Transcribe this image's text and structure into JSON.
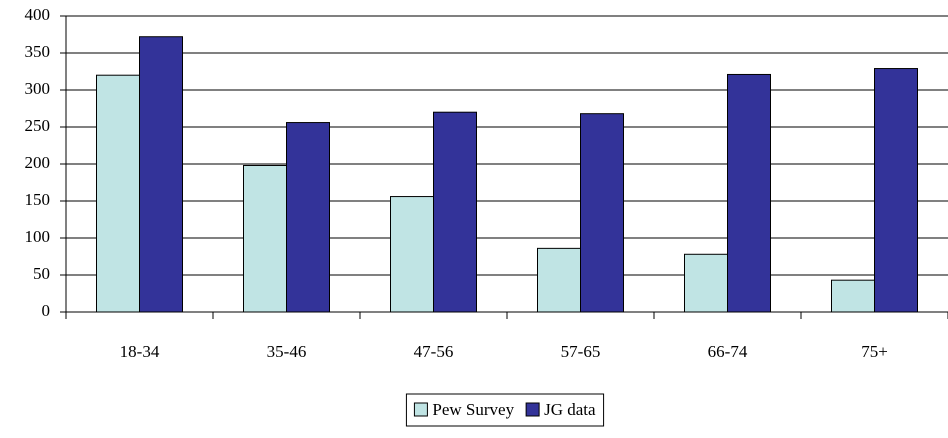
{
  "chart_data": {
    "type": "bar",
    "categories": [
      "18-34",
      "35-46",
      "47-56",
      "57-65",
      "66-74",
      "75+"
    ],
    "series": [
      {
        "name": "Pew Survey",
        "color": "#c0e4e4",
        "values": [
          320,
          198,
          156,
          86,
          78,
          43
        ]
      },
      {
        "name": "JG data",
        "color": "#333399",
        "values": [
          372,
          256,
          270,
          268,
          321,
          329
        ]
      }
    ],
    "ylim": [
      0,
      400
    ],
    "yticks": [
      0,
      50,
      100,
      150,
      200,
      250,
      300,
      350,
      400
    ],
    "grid": true,
    "legend": "bottom"
  }
}
